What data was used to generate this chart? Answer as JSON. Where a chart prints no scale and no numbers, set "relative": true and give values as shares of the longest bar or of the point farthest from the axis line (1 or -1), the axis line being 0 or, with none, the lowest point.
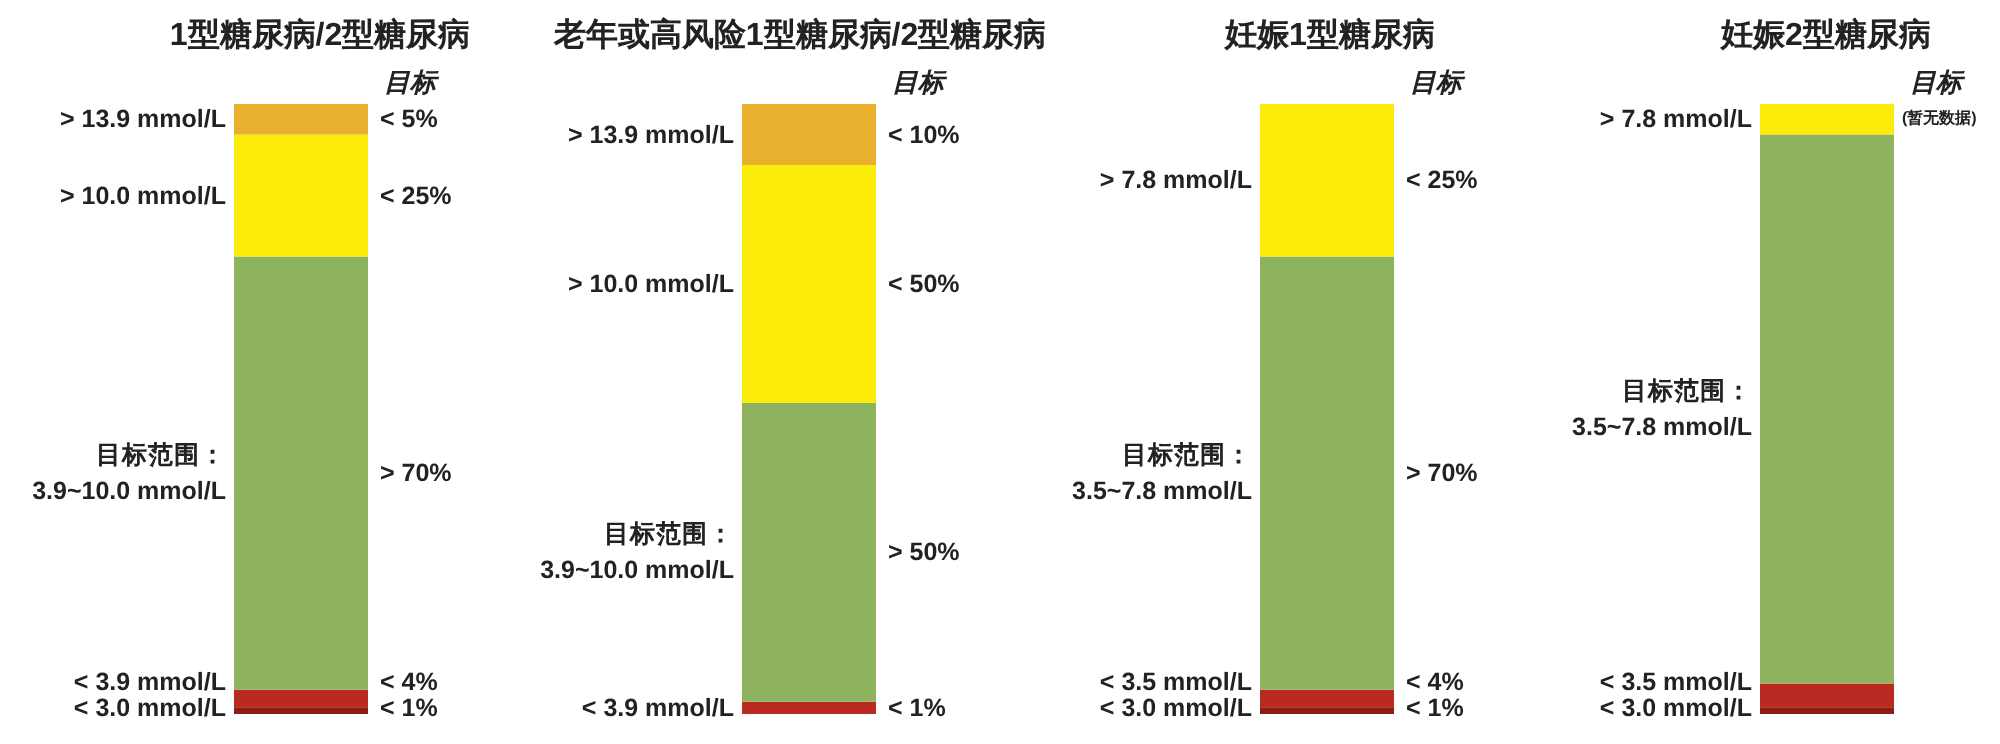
{
  "chart_data": [
    {
      "type": "bar",
      "title": "1型糖尿病/2型糖尿病",
      "stacked": true,
      "relative": true,
      "categories": [
        null
      ],
      "annotations": [
        "目标",
        "< 1%",
        "< 4%",
        "> 70%",
        "< 25%",
        "< 5%"
      ],
      "series": [
        {
          "name": "< 3.0 mmol/L",
          "color": "#8c1c18",
          "values": [
            0.01
          ]
        },
        {
          "name": "< 3.9 mmol/L",
          "color": "#b82a22",
          "values": [
            0.03
          ]
        },
        {
          "name": "目标范围：3.9~10.0 mmol/L",
          "color": "#8db35e",
          "values": [
            0.71
          ]
        },
        {
          "name": "> 10.0 mmol/L",
          "color": "#fcec0a",
          "values": [
            0.2
          ]
        },
        {
          "name": "> 13.9 mmol/L",
          "color": "#e8b02c",
          "values": [
            0.05
          ]
        }
      ]
    },
    {
      "type": "bar",
      "title": "老年或高风险1型糖尿病/2型糖尿病",
      "stacked": true,
      "relative": true,
      "categories": [
        null
      ],
      "annotations": [
        "目标",
        "< 1%",
        "> 50%",
        "< 50%",
        "< 10%"
      ],
      "series": [
        {
          "name": "< 3.9 mmol/L",
          "color": "#b82a22",
          "values": [
            0.02
          ]
        },
        {
          "name": "目标范围：3.9~10.0 mmol/L",
          "color": "#8db35e",
          "values": [
            0.49
          ]
        },
        {
          "name": "> 10.0 mmol/L",
          "color": "#fcec0a",
          "values": [
            0.39
          ]
        },
        {
          "name": "> 13.9 mmol/L",
          "color": "#e8b02c",
          "values": [
            0.1
          ]
        }
      ]
    },
    {
      "type": "bar",
      "title": "妊娠1型糖尿病",
      "stacked": true,
      "relative": true,
      "categories": [
        null
      ],
      "annotations": [
        "目标",
        "< 1%",
        "< 4%",
        "> 70%",
        "< 25%"
      ],
      "series": [
        {
          "name": "< 3.0 mmol/L",
          "color": "#8c1c18",
          "values": [
            0.01
          ]
        },
        {
          "name": "< 3.5 mmol/L",
          "color": "#b82a22",
          "values": [
            0.03
          ]
        },
        {
          "name": "目标范围：3.5~7.8 mmol/L",
          "color": "#8db35e",
          "values": [
            0.71
          ]
        },
        {
          "name": "> 7.8 mmol/L",
          "color": "#fcec0a",
          "values": [
            0.25
          ]
        }
      ]
    },
    {
      "type": "bar",
      "title": "妊娠2型糖尿病",
      "stacked": true,
      "relative": true,
      "categories": [
        null
      ],
      "annotations": [
        "目标",
        "(暂无数据)"
      ],
      "series": [
        {
          "name": "< 3.0 mmol/L",
          "color": "#8c1c18",
          "values": [
            0.01
          ]
        },
        {
          "name": "< 3.5 mmol/L",
          "color": "#b82a22",
          "values": [
            0.04
          ]
        },
        {
          "name": "目标范围：3.5~7.8 mmol/L",
          "color": "#8db35e",
          "values": [
            0.9
          ]
        },
        {
          "name": "> 7.8 mmol/L",
          "color": "#fcec0a",
          "values": [
            0.05
          ]
        }
      ]
    }
  ]
}
